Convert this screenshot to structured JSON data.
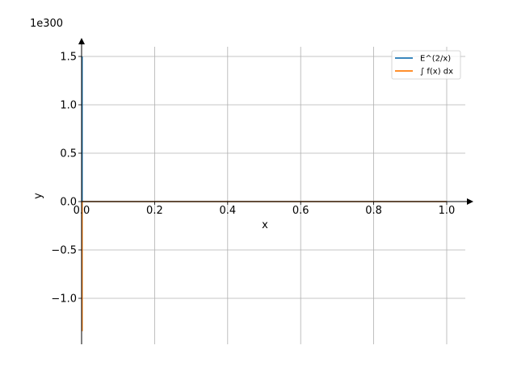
{
  "chart_data": {
    "type": "line",
    "title": "",
    "xlabel": "x",
    "ylabel": "y",
    "y_offset_label": "1e300",
    "xlim": [
      0.0,
      1.05
    ],
    "ylim": [
      -1.47,
      1.6
    ],
    "x_ticks": [
      0.0,
      0.2,
      0.4,
      0.6,
      0.8,
      1.0
    ],
    "x_tick_labels": [
      "0.0",
      "0.2",
      "0.4",
      "0.6",
      "0.8",
      "1.0"
    ],
    "y_ticks": [
      -1.0,
      -0.5,
      0.0,
      0.5,
      1.0,
      1.5
    ],
    "y_tick_labels": [
      "−1.0",
      "−0.5",
      "0.0",
      "0.5",
      "1.0",
      "1.5"
    ],
    "grid": true,
    "legend_position": "top-right",
    "series": [
      {
        "name": "E^(2/x)",
        "color": "#1f77b4",
        "x": [
          0.0015,
          0.0015,
          0.003,
          0.01,
          0.1,
          0.5,
          1.0
        ],
        "y": [
          1.5,
          0.0,
          0.0,
          0.0,
          0.0,
          0.0,
          0.0
        ]
      },
      {
        "name": "∫ f(x) dx",
        "color": "#ff7f0e",
        "x": [
          0.0015,
          0.0015,
          0.003,
          0.01,
          0.1,
          0.5,
          1.0
        ],
        "y": [
          -1.34,
          0.0,
          0.0,
          0.0,
          0.0,
          0.0,
          0.0
        ]
      }
    ]
  }
}
